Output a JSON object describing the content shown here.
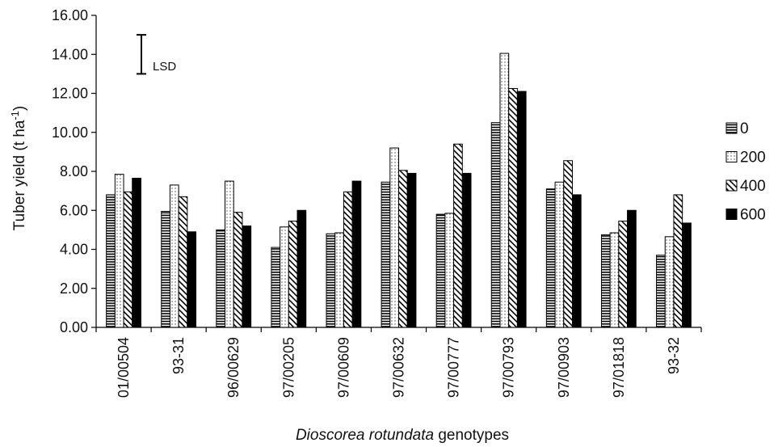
{
  "chart_data": {
    "type": "bar",
    "categories": [
      "01/00504",
      "93-31",
      "96/00629",
      "97/00205",
      "97/00609",
      "97/00632",
      "97/00777",
      "97/00793",
      "97/00903",
      "97/01818",
      "93-32"
    ],
    "series": [
      {
        "name": "0",
        "pattern": "horizontal-lines",
        "values": [
          6.8,
          5.95,
          5.0,
          4.1,
          4.8,
          7.45,
          5.8,
          10.5,
          7.1,
          4.75,
          3.7
        ]
      },
      {
        "name": "200",
        "pattern": "dots",
        "values": [
          7.85,
          7.3,
          7.5,
          5.15,
          4.85,
          9.2,
          5.85,
          14.05,
          7.45,
          4.85,
          4.65
        ]
      },
      {
        "name": "400",
        "pattern": "diagonal-hatch",
        "values": [
          6.95,
          6.7,
          5.9,
          5.45,
          6.95,
          8.05,
          9.4,
          12.25,
          8.55,
          5.45,
          6.8
        ]
      },
      {
        "name": "600",
        "pattern": "solid-black",
        "values": [
          7.65,
          4.9,
          5.2,
          6.0,
          7.5,
          7.9,
          7.9,
          12.1,
          6.8,
          6.0,
          5.35
        ]
      }
    ],
    "title": "",
    "ylabel": "Tuber yield (t ha",
    "ylabel_sup": "-1",
    "ylabel_close": ")",
    "xlabel_italic": "Dioscorea rotundata",
    "xlabel_rest": " genotypes",
    "ylim": [
      0,
      16
    ],
    "yticks": [
      "0.00",
      "2.00",
      "4.00",
      "6.00",
      "8.00",
      "10.00",
      "12.00",
      "14.00",
      "16.00"
    ],
    "ytick_values": [
      0,
      2,
      4,
      6,
      8,
      10,
      12,
      14,
      16
    ],
    "legend_position": "right",
    "grid": false,
    "lsd": {
      "label": "LSD",
      "low": 13.0,
      "high": 15.0
    }
  }
}
